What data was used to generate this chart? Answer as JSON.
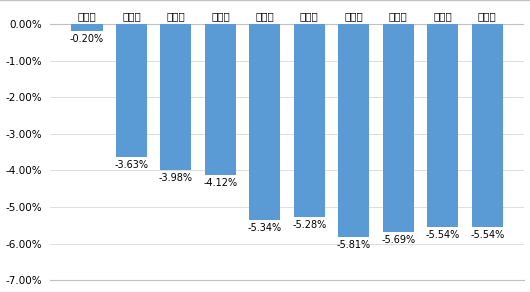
{
  "categories": [
    "第一个",
    "第二个",
    "第三个",
    "第四个",
    "第五个",
    "第六个",
    "第七个",
    "第八个",
    "第九个",
    "第十个"
  ],
  "values": [
    -0.002,
    -0.0363,
    -0.0398,
    -0.0412,
    -0.0534,
    -0.0528,
    -0.0581,
    -0.0569,
    -0.0554,
    -0.0554
  ],
  "labels": [
    "-0.20%",
    "-3.63%",
    "-3.98%",
    "-4.12%",
    "-5.34%",
    "-5.28%",
    "-5.81%",
    "-5.69%",
    "-5.54%",
    "-5.54%"
  ],
  "bar_color": "#5B9BD5",
  "background_color": "#FFFFFF",
  "border_color": "#C0C0C0",
  "ylim_min": -0.07,
  "ylim_max": 0.005,
  "yticks": [
    0.0,
    -0.01,
    -0.02,
    -0.03,
    -0.04,
    -0.05,
    -0.06,
    -0.07
  ],
  "label_fontsize": 7.0,
  "cat_fontsize": 7.5,
  "ytick_fontsize": 7.5
}
